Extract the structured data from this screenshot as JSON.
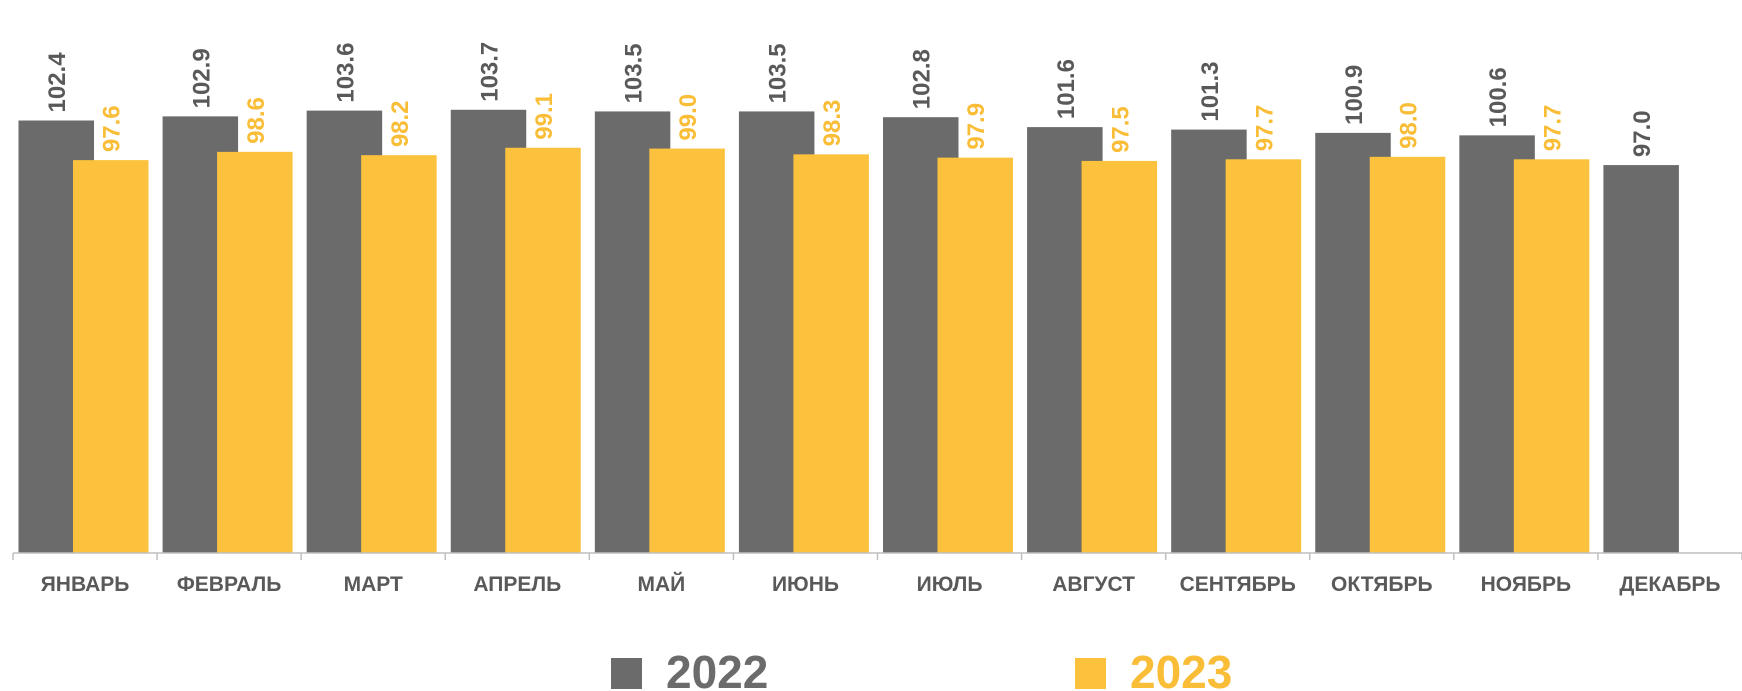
{
  "chart_data": {
    "type": "bar",
    "categories": [
      "ЯНВАРЬ",
      "ФЕВРАЛЬ",
      "МАРТ",
      "АПРЕЛЬ",
      "МАЙ",
      "ИЮНЬ",
      "ИЮЛЬ",
      "АВГУСТ",
      "СЕНТЯБРЬ",
      "ОКТЯБРЬ",
      "НОЯБРЬ",
      "ДЕКАБРЬ"
    ],
    "series": [
      {
        "name": "2022",
        "color": "#6b6b6b",
        "label_color": "#595959",
        "values": [
          102.4,
          102.9,
          103.6,
          103.7,
          103.5,
          103.5,
          102.8,
          101.6,
          101.3,
          100.9,
          100.6,
          97.0
        ],
        "value_labels": [
          "102.4",
          "102.9",
          "103.6",
          "103.7",
          "103.5",
          "103.5",
          "102.8",
          "101.6",
          "101.3",
          "100.9",
          "100.6",
          "97.0"
        ]
      },
      {
        "name": "2023",
        "color": "#fcc23d",
        "label_color": "#f9bd37",
        "values": [
          97.6,
          98.6,
          98.2,
          99.1,
          99.0,
          98.3,
          97.9,
          97.5,
          97.7,
          98.0,
          97.7,
          null
        ],
        "value_labels": [
          "97.6",
          "98.6",
          "98.2",
          "99.1",
          "99.0",
          "98.3",
          "97.9",
          "97.5",
          "97.7",
          "98.0",
          "97.7",
          null
        ]
      }
    ],
    "ylim": [
      50,
      117
    ],
    "legend": "bottom"
  }
}
